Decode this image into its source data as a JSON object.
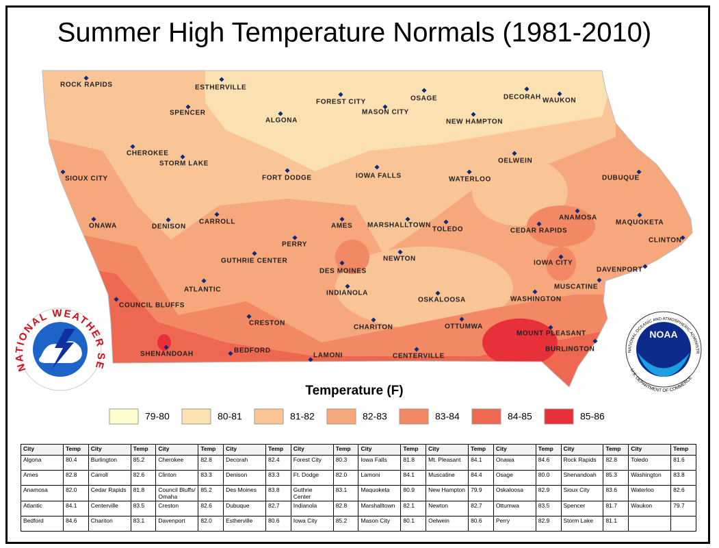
{
  "title": "Summer High Temperature Normals (1981-2010)",
  "map": {
    "cities": [
      "ROCK RAPIDS",
      "ESTHERVILLE",
      "SPENCER",
      "ALGONA",
      "FOREST CITY",
      "MASON CITY",
      "OSAGE",
      "DECORAH",
      "WAUKON",
      "NEW HAMPTON",
      "CHEROKEE",
      "STORM LAKE",
      "OELWEIN",
      "SIOUX CITY",
      "FORT DODGE",
      "IOWA FALLS",
      "WATERLOO",
      "DUBUQUE",
      "ONAWA",
      "DENISON",
      "CARROLL",
      "AMES",
      "MARSHALLTOWN",
      "TOLEDO",
      "ANAMOSA",
      "MAQUOKETA",
      "CEDAR RAPIDS",
      "CLINTON",
      "PERRY",
      "GUTHRIE CENTER",
      "NEWTON",
      "DES MOINES",
      "IOWA CITY",
      "DAVENPORT",
      "ATLANTIC",
      "INDIANOLA",
      "MUSCATINE",
      "COUNCIL BLUFFS",
      "OSKALOOSA",
      "WASHINGTON",
      "CRESTON",
      "CHARITON",
      "OTTUMWA",
      "MOUNT PLEASANT",
      "SHENANDOAH",
      "BEDFORD",
      "LAMONI",
      "CENTERVILLE",
      "BURLINGTON"
    ]
  },
  "logos": {
    "nws": "NATIONAL WEATHER SERVICE",
    "noaa": "NOAA",
    "noaa_ring_top": "NATIONAL OCEANIC AND ATMOSPHERIC ADMINISTRATION",
    "noaa_ring_bottom": "U.S. DEPARTMENT OF COMMERCE"
  },
  "legend": {
    "title": "Temperature (F)",
    "items": [
      {
        "label": "79-80",
        "color": "#fefdd0"
      },
      {
        "label": "80-81",
        "color": "#fbe1b2"
      },
      {
        "label": "81-82",
        "color": "#f9c597"
      },
      {
        "label": "82-83",
        "color": "#f6a77c"
      },
      {
        "label": "83-84",
        "color": "#f28864"
      },
      {
        "label": "84-85",
        "color": "#ee6750"
      },
      {
        "label": "85-86",
        "color": "#e8303a"
      }
    ]
  },
  "table": {
    "header": [
      "City",
      "Temp",
      "City",
      "Temp",
      "City",
      "Temp",
      "City",
      "Temp",
      "City",
      "Temp",
      "City",
      "Temp",
      "City",
      "Temp",
      "City",
      "Temp",
      "City",
      "Temp",
      "City",
      "Temp"
    ],
    "rows": [
      [
        "Algona",
        "80.4",
        "Burlington",
        "85.2",
        "Cherokee",
        "82.8",
        "Decorah",
        "82.4",
        "Forest City",
        "80.3",
        "Iowa Falls",
        "81.8",
        "Mt. Pleasant",
        "84.1",
        "Onawa",
        "84.6",
        "Rock Rapids",
        "82.8",
        "Toledo",
        "81.6"
      ],
      [
        "Ames",
        "82.8",
        "Carroll",
        "82.6",
        "Clinton",
        "83.3",
        "Denison",
        "83.3",
        "Ft. Dodge",
        "82.0",
        "Lamoni",
        "84.1",
        "Muscatine",
        "84.4",
        "Osage",
        "80.0",
        "Shenandoah",
        "85.3",
        "Washington",
        "83.8"
      ],
      [
        "Anamosa",
        "82.0",
        "Cedar Rapids",
        "81.8",
        "Council Bluffs/ Omaha",
        "85.2",
        "Des Moines",
        "83.8",
        "Guthrie Center",
        "83.1",
        "Maquoketa",
        "80.9",
        "New Hampton",
        "79.9",
        "Oskaloosa",
        "82.9",
        "Sioux City",
        "83.6",
        "Waterloo",
        "82.6"
      ],
      [
        "Atlantic",
        "84.1",
        "Centerville",
        "83.5",
        "Creston",
        "82.6",
        "Dubuque",
        "82.7",
        "Indianola",
        "82.8",
        "Marshalltown",
        "82.1",
        "Newton",
        "82.7",
        "Ottumwa",
        "83.5",
        "Spencer",
        "81.7",
        "Waukon",
        "79.7"
      ],
      [
        "Bedford",
        "84.6",
        "Chariton",
        "83.1",
        "Davenport",
        "82.0",
        "Estherville",
        "80.6",
        "Iowa City",
        "85.2",
        "Mason City",
        "80.1",
        "Oelwein",
        "80.6",
        "Perry",
        "82.9",
        "Storm Lake",
        "81.1",
        null,
        null
      ]
    ]
  }
}
